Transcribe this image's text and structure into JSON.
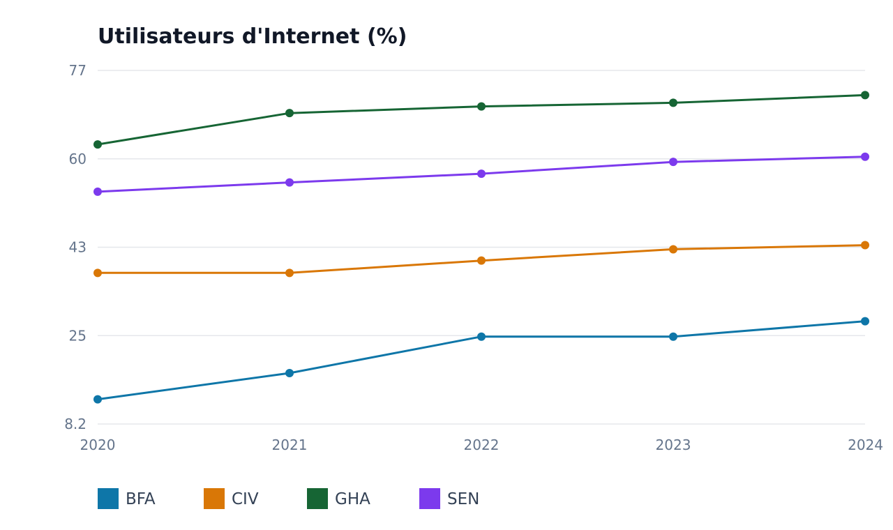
{
  "chart_data": {
    "type": "line",
    "title": "Utilisateurs d'Internet (%)",
    "xlabel": "",
    "ylabel": "",
    "x": [
      "2020",
      "2021",
      "2022",
      "2023",
      "2024"
    ],
    "ylim": [
      8.2,
      77
    ],
    "yticks": [
      "77",
      "60",
      "43",
      "25",
      "8.2"
    ],
    "grid": true,
    "legend_position": "bottom-left",
    "series": [
      {
        "name": "BFA",
        "color": "#0e76a8",
        "values": [
          13.0,
          18.1,
          25.2,
          25.2,
          28.2
        ]
      },
      {
        "name": "CIV",
        "color": "#d97706",
        "values": [
          37.6,
          37.6,
          40.0,
          42.2,
          43.0
        ]
      },
      {
        "name": "GHA",
        "color": "#166534",
        "values": [
          62.6,
          68.7,
          70.0,
          70.7,
          72.2
        ]
      },
      {
        "name": "SEN",
        "color": "#7c3aed",
        "values": [
          53.4,
          55.2,
          56.9,
          59.2,
          60.2
        ]
      }
    ]
  }
}
